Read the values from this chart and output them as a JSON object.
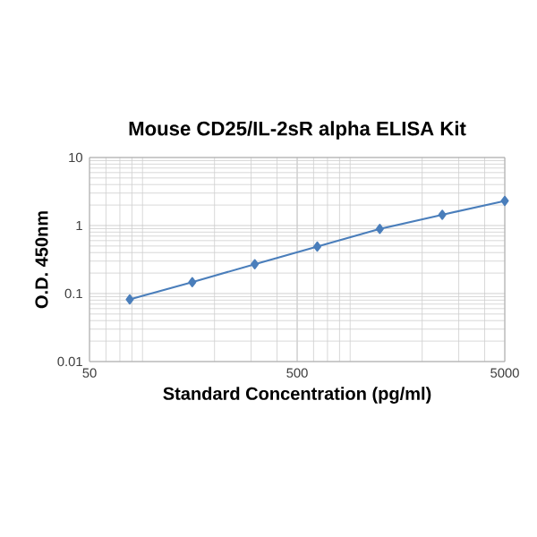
{
  "chart_data": {
    "type": "line",
    "title": "Mouse CD25/IL-2sR alpha ELISA Kit",
    "xlabel": "Standard Concentration (pg/ml)",
    "ylabel": "O.D. 450nm",
    "x": [
      78.125,
      156.25,
      312.5,
      625,
      1250,
      2500,
      5000
    ],
    "series": [
      {
        "color": "#4a7ebb",
        "values": [
          0.082,
          0.147,
          0.27,
          0.49,
          0.89,
          1.44,
          2.3
        ]
      }
    ],
    "log": "xy",
    "xlim": [
      50,
      5000
    ],
    "xticks": [
      50,
      500,
      5000
    ],
    "ylim": [
      0.01,
      10
    ],
    "yticks": [
      0.01,
      0.1,
      1,
      10
    ],
    "grid": true,
    "marker": "diamond",
    "line_style": "solid"
  }
}
